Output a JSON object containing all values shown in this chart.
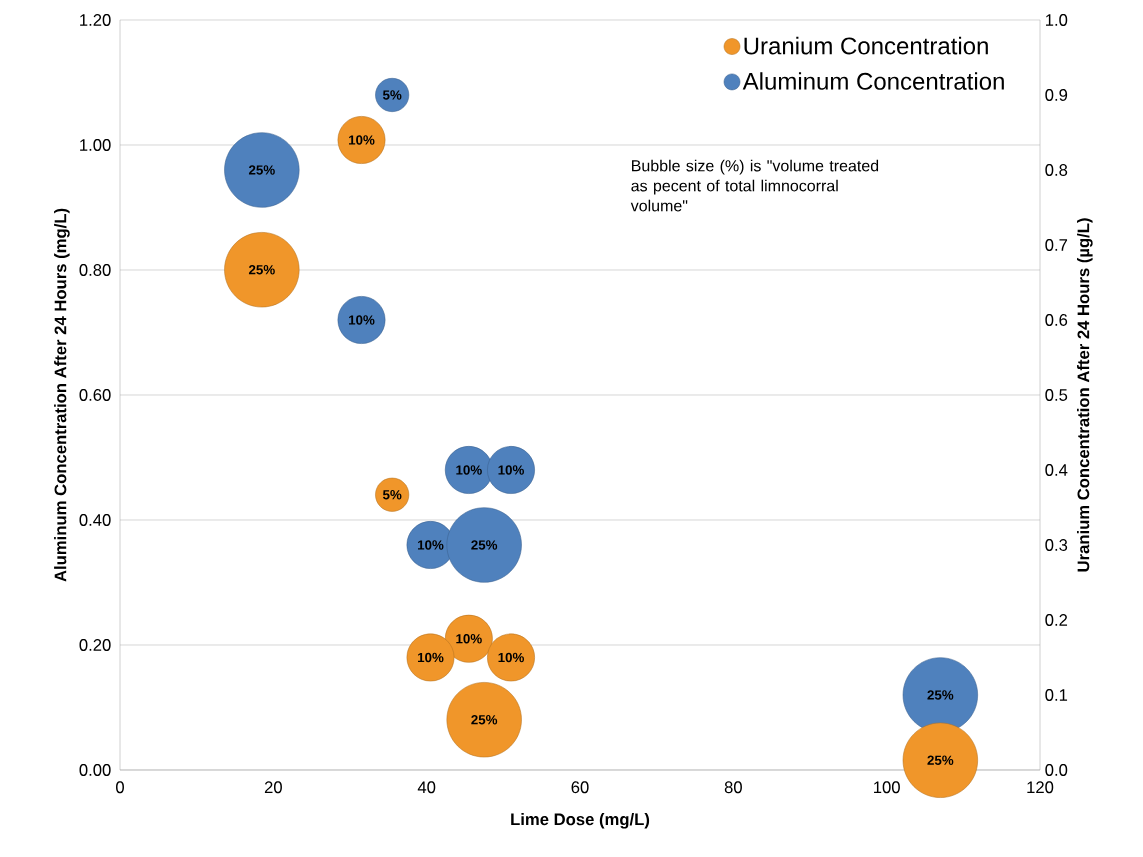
{
  "chart_data": {
    "type": "bubble",
    "xlabel": "Lime Dose (mg/L)",
    "ylabel": "Aluminum Concentration After 24 Hours (mg/L)",
    "y2label": "Uranium Concentration After 24 Hours (µg/L)",
    "xlim": [
      0,
      120
    ],
    "xticks": [
      0,
      20,
      40,
      60,
      80,
      100,
      120
    ],
    "ylim": [
      0,
      1.2
    ],
    "yticks": [
      {
        "value": 0,
        "label": "0.00"
      },
      {
        "value": 0.2,
        "label": "0.20"
      },
      {
        "value": 0.4,
        "label": "0.40"
      },
      {
        "value": 0.6,
        "label": "0.60"
      },
      {
        "value": 0.8,
        "label": "0.80"
      },
      {
        "value": 1.0,
        "label": "1.00"
      },
      {
        "value": 1.2,
        "label": "1.20"
      }
    ],
    "y2lim": [
      0,
      1.0
    ],
    "y2ticks": [
      {
        "value": 0,
        "label": "0.0"
      },
      0.1,
      0.2,
      0.3,
      0.4,
      0.5,
      0.6,
      0.7,
      0.8,
      0.9,
      {
        "value": 1.0,
        "label": "1.0"
      }
    ],
    "grid": "y",
    "legend": "top right",
    "annotations": [
      "Bubble size (%) is \"volume treated as pecent of total limnocorral volume\""
    ],
    "series": [
      {
        "name": "Uranium Concentration",
        "color": "#f0962a",
        "axis": "y2",
        "x": [
          31.5,
          18.5,
          35.5,
          45.5,
          40.5,
          51,
          47.5,
          107
        ],
        "values": [
          0.84,
          0.667,
          0.367,
          0.175,
          0.15,
          0.15,
          0.067,
          0.013
        ],
        "sizes": [
          10,
          25,
          5,
          10,
          10,
          10,
          25,
          25
        ],
        "value_labels": [
          "10%",
          "25%",
          "5%",
          "10%",
          "10%",
          "10%",
          "25%",
          "25%"
        ]
      },
      {
        "name": "Aluminum Concentration",
        "color": "#4f81bd",
        "x": [
          35.5,
          18.5,
          31.5,
          45.5,
          51,
          40.5,
          47.5,
          107
        ],
        "values": [
          1.08,
          0.96,
          0.72,
          0.48,
          0.48,
          0.36,
          0.36,
          0.12
        ],
        "sizes": [
          5,
          25,
          10,
          10,
          10,
          10,
          25,
          25
        ],
        "value_labels": [
          "5%",
          "25%",
          "10%",
          "10%",
          "10%",
          "10%",
          "25%",
          "25%"
        ]
      }
    ]
  }
}
